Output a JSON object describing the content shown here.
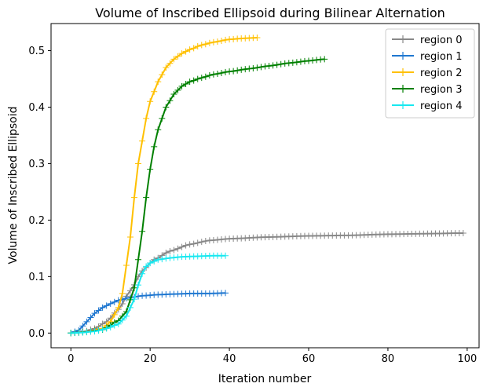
{
  "chart_data": {
    "type": "line",
    "title": "Volume of Inscribed Ellipsoid during Bilinear Alternation",
    "xlabel": "Iteration number",
    "ylabel": "Volume of Inscribed Ellipsoid",
    "xlim": [
      -5,
      103
    ],
    "ylim": [
      -0.026,
      0.548
    ],
    "xticks": [
      "0",
      "20",
      "40",
      "60",
      "80",
      "100"
    ],
    "yticks": [
      "0.0",
      "0.1",
      "0.2",
      "0.3",
      "0.4",
      "0.5"
    ],
    "grid": false,
    "legend_position": "top-right",
    "marker": "+",
    "series": [
      {
        "name": "region 0",
        "color": "#888888",
        "n": 100,
        "points": [
          [
            0,
            0
          ],
          [
            3,
            0.002
          ],
          [
            6,
            0.008
          ],
          [
            9,
            0.02
          ],
          [
            12,
            0.042
          ],
          [
            15,
            0.075
          ],
          [
            18,
            0.11
          ],
          [
            21,
            0.13
          ],
          [
            25,
            0.145
          ],
          [
            30,
            0.157
          ],
          [
            35,
            0.164
          ],
          [
            40,
            0.167
          ],
          [
            50,
            0.17
          ],
          [
            60,
            0.172
          ],
          [
            70,
            0.173
          ],
          [
            80,
            0.175
          ],
          [
            90,
            0.176
          ],
          [
            99,
            0.177
          ]
        ]
      },
      {
        "name": "region 1",
        "color": "#1f77d0",
        "n": 40,
        "points": [
          [
            0,
            0
          ],
          [
            2,
            0.005
          ],
          [
            4,
            0.02
          ],
          [
            6,
            0.035
          ],
          [
            8,
            0.045
          ],
          [
            10,
            0.052
          ],
          [
            12,
            0.058
          ],
          [
            15,
            0.063
          ],
          [
            18,
            0.066
          ],
          [
            22,
            0.068
          ],
          [
            26,
            0.069
          ],
          [
            30,
            0.07
          ],
          [
            35,
            0.07
          ],
          [
            39,
            0.071
          ]
        ]
      },
      {
        "name": "region 2",
        "color": "#ffc000",
        "n": 48,
        "points": [
          [
            0,
            0
          ],
          [
            4,
            0.002
          ],
          [
            8,
            0.008
          ],
          [
            10,
            0.02
          ],
          [
            12,
            0.045
          ],
          [
            13,
            0.07
          ],
          [
            14,
            0.12
          ],
          [
            15,
            0.17
          ],
          [
            16,
            0.24
          ],
          [
            17,
            0.3
          ],
          [
            18,
            0.34
          ],
          [
            19,
            0.38
          ],
          [
            20,
            0.41
          ],
          [
            22,
            0.445
          ],
          [
            24,
            0.47
          ],
          [
            26,
            0.485
          ],
          [
            28,
            0.495
          ],
          [
            30,
            0.502
          ],
          [
            33,
            0.51
          ],
          [
            36,
            0.515
          ],
          [
            40,
            0.52
          ],
          [
            44,
            0.522
          ],
          [
            47,
            0.523
          ]
        ]
      },
      {
        "name": "region 3",
        "color": "#008000",
        "n": 65,
        "points": [
          [
            0,
            0
          ],
          [
            4,
            0.002
          ],
          [
            8,
            0.006
          ],
          [
            12,
            0.022
          ],
          [
            14,
            0.038
          ],
          [
            16,
            0.08
          ],
          [
            17,
            0.13
          ],
          [
            18,
            0.18
          ],
          [
            19,
            0.24
          ],
          [
            20,
            0.29
          ],
          [
            21,
            0.33
          ],
          [
            22,
            0.36
          ],
          [
            24,
            0.4
          ],
          [
            26,
            0.423
          ],
          [
            28,
            0.437
          ],
          [
            30,
            0.445
          ],
          [
            33,
            0.452
          ],
          [
            36,
            0.458
          ],
          [
            40,
            0.463
          ],
          [
            45,
            0.468
          ],
          [
            50,
            0.473
          ],
          [
            55,
            0.478
          ],
          [
            60,
            0.482
          ],
          [
            64,
            0.485
          ]
        ]
      },
      {
        "name": "region 4",
        "color": "#17e8f0",
        "n": 40,
        "points": [
          [
            0,
            0
          ],
          [
            3,
            0.001
          ],
          [
            6,
            0.003
          ],
          [
            9,
            0.008
          ],
          [
            12,
            0.016
          ],
          [
            14,
            0.03
          ],
          [
            16,
            0.06
          ],
          [
            17,
            0.085
          ],
          [
            18,
            0.105
          ],
          [
            19,
            0.118
          ],
          [
            20,
            0.124
          ],
          [
            22,
            0.13
          ],
          [
            25,
            0.133
          ],
          [
            28,
            0.135
          ],
          [
            32,
            0.136
          ],
          [
            36,
            0.137
          ],
          [
            39,
            0.137
          ]
        ]
      }
    ]
  }
}
